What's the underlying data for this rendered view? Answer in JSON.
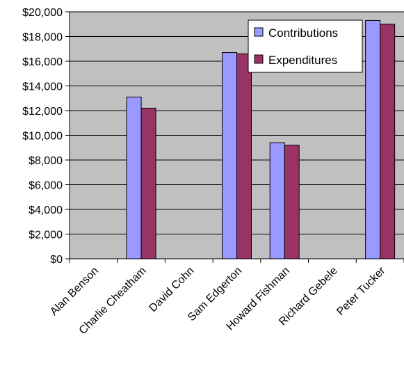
{
  "chart_data": {
    "type": "bar",
    "categories": [
      "Alan Benson",
      "Charlie Cheatham",
      "David Cohn",
      "Sam Edgerton",
      "Howard Fishman",
      "Richard Gebele",
      "Peter Tucker"
    ],
    "series": [
      {
        "name": "Contributions",
        "values": [
          0,
          13100,
          0,
          16700,
          9400,
          0,
          19300
        ],
        "color": "#9999ff"
      },
      {
        "name": "Expenditures",
        "values": [
          0,
          12200,
          0,
          16600,
          9200,
          0,
          19000
        ],
        "color": "#993366"
      }
    ],
    "ylim": [
      0,
      20000
    ],
    "y_ticks": [
      0,
      2000,
      4000,
      6000,
      8000,
      10000,
      12000,
      14000,
      16000,
      18000,
      20000
    ],
    "y_tick_labels": [
      "$0",
      "$2,000",
      "$4,000",
      "$6,000",
      "$8,000",
      "$10,000",
      "$12,000",
      "$14,000",
      "$16,000",
      "$18,000",
      "$20,000"
    ],
    "grid": true,
    "legend_position": "top-right",
    "plot_background": "#c0c0c0",
    "title": "",
    "xlabel": "",
    "ylabel": ""
  }
}
